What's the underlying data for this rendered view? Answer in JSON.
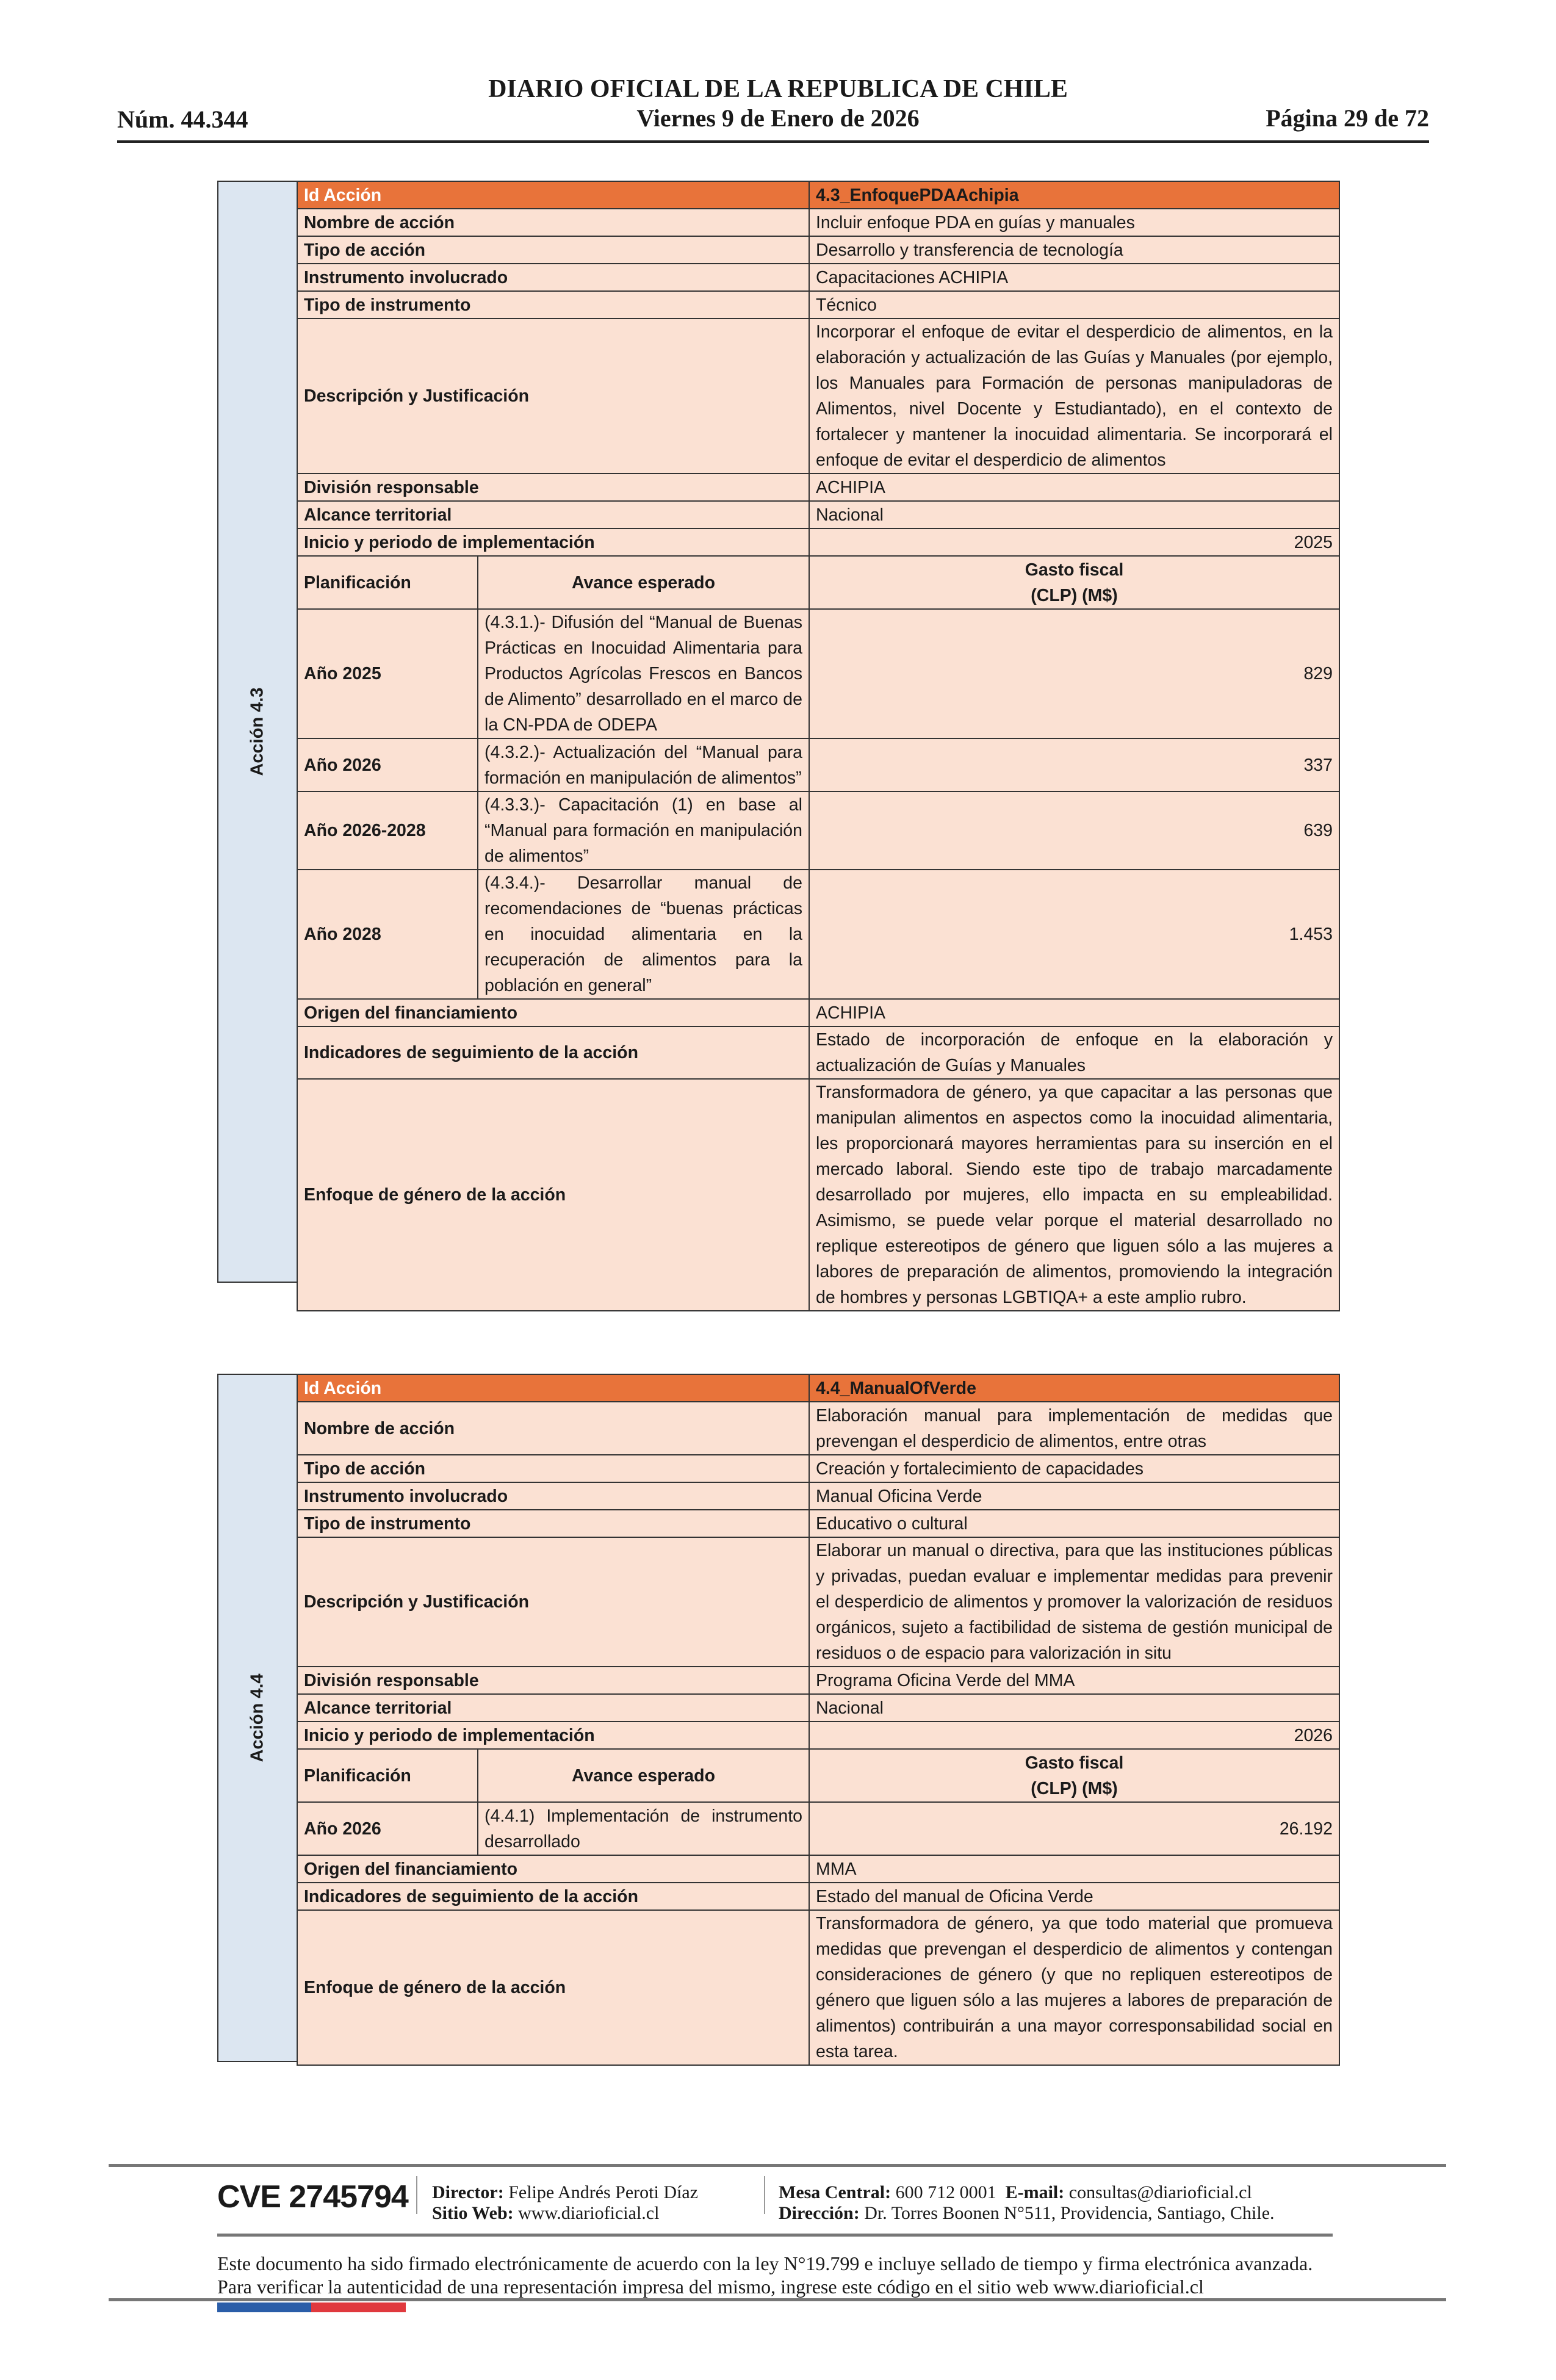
{
  "header": {
    "title": "DIARIO OFICIAL DE LA REPUBLICA DE CHILE",
    "date": "Viernes 9 de Enero de 2026",
    "number": "Núm. 44.344",
    "page": "Página 29 de 72"
  },
  "colors": {
    "header_orange": "#E8733A",
    "cell_peach": "#FBE1D3",
    "side_blue": "#DCE6F1"
  },
  "actions": [
    {
      "side_label": "Acción 4.3",
      "id_label": "Id Acción",
      "id_value": "4.3_EnfoquePDAAchipia",
      "fields_before": [
        {
          "label": "Nombre de acción",
          "value": "Incluir enfoque PDA en guías y manuales"
        },
        {
          "label": "Tipo de acción",
          "value": "Desarrollo y transferencia de tecnología"
        },
        {
          "label": "Instrumento involucrado",
          "value": "Capacitaciones ACHIPIA"
        },
        {
          "label": "Tipo de instrumento",
          "value": "Técnico"
        },
        {
          "label": "Descripción y Justificación",
          "value": "Incorporar el enfoque de evitar el desperdicio de alimentos, en la elaboración y actualización de las Guías y Manuales (por ejemplo, los Manuales para Formación de personas manipuladoras de Alimentos, nivel Docente y Estudiantado), en el contexto de fortalecer y mantener la inocuidad alimentaria. Se incorporará el enfoque de evitar el desperdicio de alimentos"
        },
        {
          "label": "División responsable",
          "value": "ACHIPIA"
        },
        {
          "label": "Alcance territorial",
          "value": "Nacional"
        }
      ],
      "implementation": {
        "label": "Inicio y periodo de implementación",
        "value": "2025"
      },
      "planning_header": {
        "col1": "Planificación",
        "col2": "Avance esperado",
        "col3": "Gasto fiscal (CLP) (M$)"
      },
      "planning": [
        {
          "year": "Año 2025",
          "progress": "(4.3.1.)- Difusión del “Manual de Buenas Prácticas en Inocuidad Alimentaria para Productos Agrícolas Frescos en Bancos de Alimento” desarrollado en el marco de la CN-PDA de ODEPA",
          "cost": "829"
        },
        {
          "year": "Año 2026",
          "progress": "(4.3.2.)- Actualización del “Manual para formación en manipulación de alimentos”",
          "cost": "337"
        },
        {
          "year": "Año 2026-2028",
          "progress": "(4.3.3.)- Capacitación (1) en base al “Manual para formación en manipulación de alimentos”",
          "cost": "639"
        },
        {
          "year": "Año 2028",
          "progress": "(4.3.4.)- Desarrollar manual de recomendaciones de “buenas prácticas en inocuidad alimentaria en la recuperación de alimentos para la población en general”",
          "cost": "1.453"
        }
      ],
      "fields_after": [
        {
          "label": "Origen del financiamiento",
          "value": "ACHIPIA"
        },
        {
          "label": "Indicadores de seguimiento de la acción",
          "value": "Estado de incorporación de enfoque en la elaboración y actualización de Guías y Manuales"
        },
        {
          "label": "Enfoque de género de la acción",
          "value": "Transformadora de género, ya que capacitar a las personas que manipulan alimentos en aspectos como la inocuidad alimentaria, les proporcionará mayores herramientas para su inserción en el mercado laboral. Siendo este tipo de trabajo marcadamente desarrollado por mujeres, ello impacta en su empleabilidad. Asimismo, se puede velar porque el material desarrollado no replique estereotipos de género que liguen sólo a las mujeres a labores de preparación de alimentos, promoviendo la integración de hombres y personas LGBTIQA+ a este amplio rubro."
        }
      ]
    },
    {
      "side_label": "Acción 4.4",
      "id_label": "Id Acción",
      "id_value": "4.4_ManualOfVerde",
      "fields_before": [
        {
          "label": "Nombre de acción",
          "value": "Elaboración manual para implementación de medidas que prevengan el desperdicio de alimentos, entre otras"
        },
        {
          "label": "Tipo de acción",
          "value": "Creación y fortalecimiento de capacidades"
        },
        {
          "label": "Instrumento involucrado",
          "value": "Manual Oficina Verde"
        },
        {
          "label": "Tipo de instrumento",
          "value": "Educativo o cultural"
        },
        {
          "label": "Descripción y Justificación",
          "value": "Elaborar un manual o directiva, para que las instituciones públicas y privadas, puedan evaluar e implementar medidas para prevenir el desperdicio de alimentos y promover la valorización de residuos orgánicos, sujeto a factibilidad de sistema de gestión municipal de residuos o de espacio para valorización in situ"
        },
        {
          "label": "División responsable",
          "value": "Programa Oficina Verde del MMA"
        },
        {
          "label": "Alcance territorial",
          "value": "Nacional"
        }
      ],
      "implementation": {
        "label": "Inicio y periodo de implementación",
        "value": "2026"
      },
      "planning_header": {
        "col1": "Planificación",
        "col2": "Avance esperado",
        "col3": "Gasto fiscal (CLP) (M$)"
      },
      "planning": [
        {
          "year": "Año 2026",
          "progress": "(4.4.1) Implementación de instrumento desarrollado",
          "cost": "26.192"
        }
      ],
      "fields_after": [
        {
          "label": "Origen del financiamiento",
          "value": "MMA"
        },
        {
          "label": "Indicadores de seguimiento de la acción",
          "value": "Estado del manual de Oficina Verde"
        },
        {
          "label": "Enfoque de género de la acción",
          "value": "Transformadora de género, ya que todo material que promueva medidas que prevengan el desperdicio de alimentos y contengan consideraciones de género (y que no repliquen estereotipos de género que liguen sólo a las mujeres a labores de preparación de alimentos) contribuirán a una mayor corresponsabilidad social en esta tarea."
        }
      ]
    }
  ],
  "footer": {
    "cve": "CVE 2745794",
    "director_label": "Director:",
    "director": "Felipe Andrés Peroti Díaz",
    "site_label": "Sitio Web:",
    "site": "www.diarioficial.cl",
    "phone_label": "Mesa Central:",
    "phone": "600 712 0001",
    "email_label": "E-mail:",
    "email": "consultas@diarioficial.cl",
    "address_label": "Dirección:",
    "address": "Dr. Torres Boonen N°511, Providencia, Santiago, Chile.",
    "legal": "Este documento ha sido firmado electrónicamente de acuerdo con la ley N°19.799 e incluye sellado de tiempo y firma electrónica avanzada. Para verificar la autenticidad de una representación impresa del mismo, ingrese este código en el sitio web www.diarioficial.cl"
  }
}
